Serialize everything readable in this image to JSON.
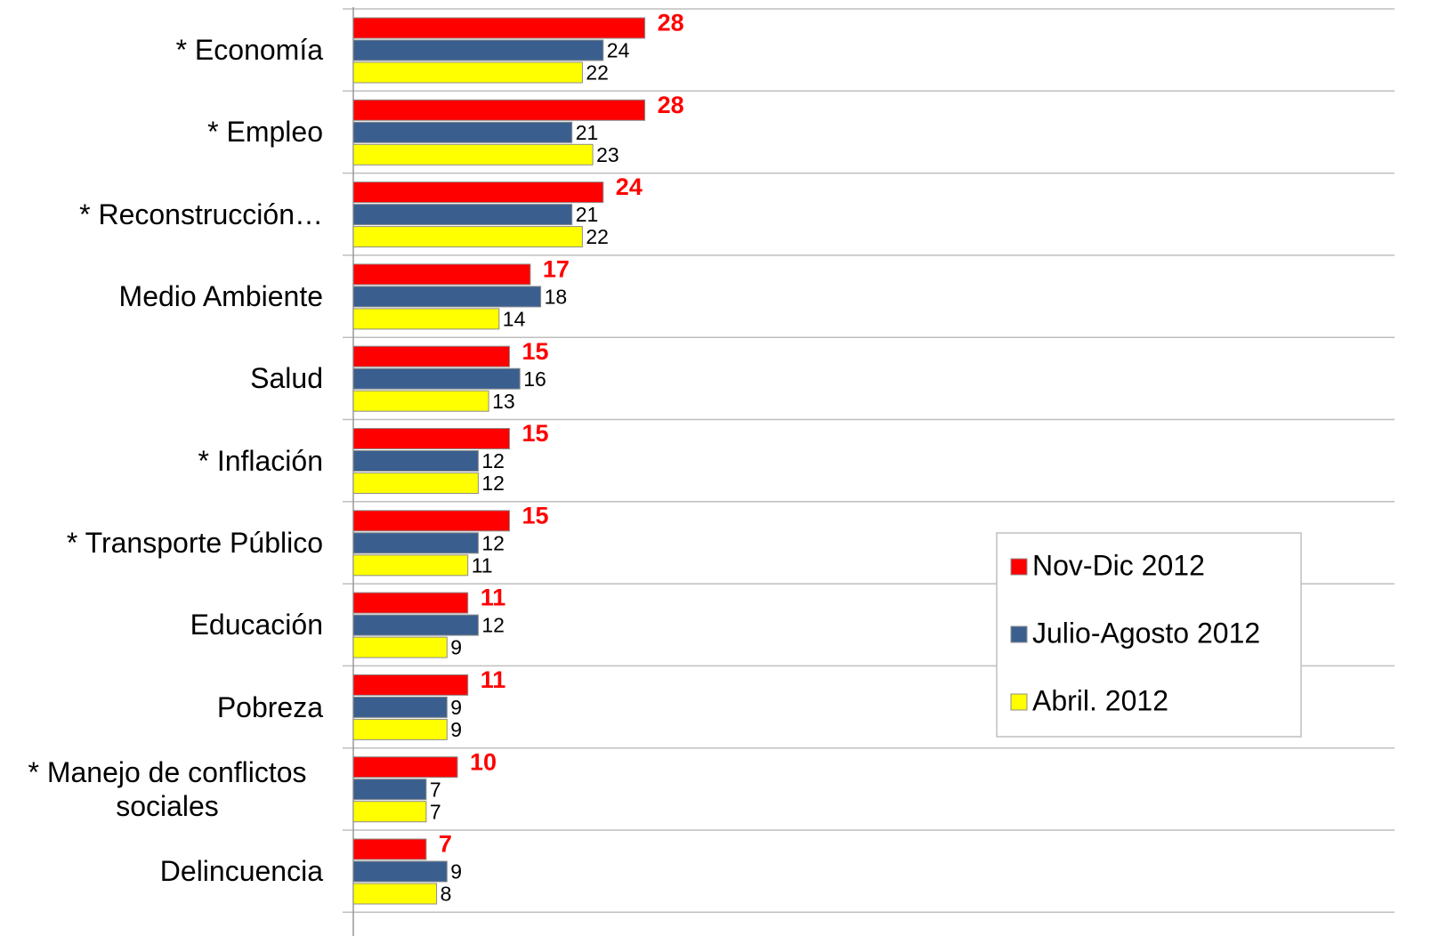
{
  "chart_data": {
    "type": "bar",
    "orientation": "horizontal",
    "categories": [
      "* Economía",
      "* Empleo",
      "* Reconstrucción…",
      "Medio Ambiente",
      "Salud",
      "* Inflación",
      "* Transporte Público",
      "Educación",
      "Pobreza",
      "* Manejo de conflictos sociales",
      "Delincuencia"
    ],
    "series": [
      {
        "name": "Nov-Dic 2012",
        "color": "#ff0000",
        "values": [
          28,
          28,
          24,
          17,
          15,
          15,
          15,
          11,
          11,
          10,
          7
        ]
      },
      {
        "name": "Julio-Agosto 2012",
        "color": "#3a5f8f",
        "values": [
          24,
          21,
          21,
          18,
          16,
          12,
          12,
          12,
          9,
          7,
          9
        ]
      },
      {
        "name": "Abril. 2012",
        "color": "#ffff00",
        "values": [
          22,
          23,
          22,
          14,
          13,
          12,
          11,
          9,
          9,
          7,
          8
        ]
      }
    ],
    "xlim": [
      0,
      100
    ],
    "legend": "right"
  }
}
